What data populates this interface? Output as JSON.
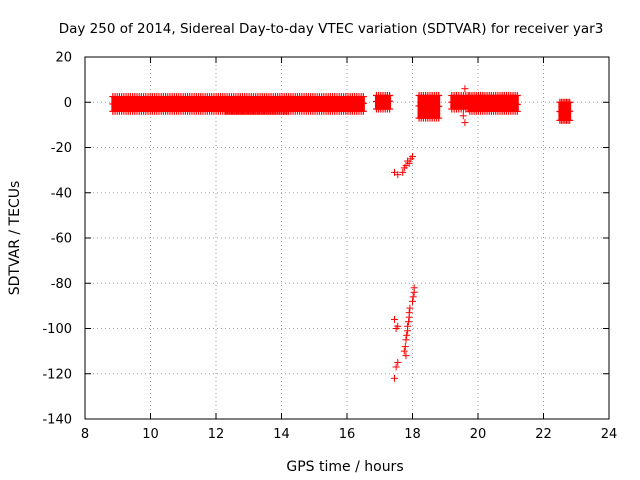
{
  "chart_data": {
    "type": "scatter",
    "title": "Day 250 of 2014, Sidereal Day-to-day VTEC variation (SDTVAR) for receiver yar3",
    "xlabel": "GPS time / hours",
    "ylabel": "SDTVAR / TECUs",
    "xlim": [
      8,
      24
    ],
    "ylim": [
      -140,
      20
    ],
    "xticks": [
      "8",
      "10",
      "12",
      "14",
      "16",
      "18",
      "20",
      "22",
      "24"
    ],
    "yticks": [
      "20",
      "0",
      "-20",
      "-40",
      "-60",
      "-80",
      "-100",
      "-120",
      "-140"
    ],
    "grid": true,
    "marker": "plus",
    "color": "#ff0000",
    "segments": [
      {
        "x_start": 8.85,
        "x_end": 16.5,
        "y_min": -4,
        "y_max": 2.5
      },
      {
        "x_start": 12.3,
        "x_end": 14.2,
        "y_min": -4,
        "y_max": 1
      },
      {
        "x_start": 16.9,
        "x_end": 17.3,
        "y_min": -3,
        "y_max": 3
      },
      {
        "x_start": 18.2,
        "x_end": 18.8,
        "y_min": -7,
        "y_max": 3
      },
      {
        "x_start": 19.2,
        "x_end": 19.7,
        "y_min": -3,
        "y_max": 3
      },
      {
        "x_start": 19.75,
        "x_end": 21.2,
        "y_min": -4,
        "y_max": 3
      },
      {
        "x_start": 22.5,
        "x_end": 22.8,
        "y_min": -8,
        "y_max": 0
      }
    ],
    "points": [
      {
        "x": 19.6,
        "y": 6
      },
      {
        "x": 19.55,
        "y": -6
      },
      {
        "x": 19.6,
        "y": -9
      },
      {
        "x": 17.45,
        "y": -31
      },
      {
        "x": 17.55,
        "y": -32
      },
      {
        "x": 17.7,
        "y": -31
      },
      {
        "x": 17.75,
        "y": -29
      },
      {
        "x": 17.8,
        "y": -28
      },
      {
        "x": 17.85,
        "y": -26
      },
      {
        "x": 17.9,
        "y": -27
      },
      {
        "x": 17.95,
        "y": -25
      },
      {
        "x": 18.0,
        "y": -24
      },
      {
        "x": 17.45,
        "y": -96
      },
      {
        "x": 17.55,
        "y": -99
      },
      {
        "x": 17.5,
        "y": -100
      },
      {
        "x": 17.55,
        "y": -115
      },
      {
        "x": 17.5,
        "y": -117
      },
      {
        "x": 17.45,
        "y": -122
      },
      {
        "x": 17.75,
        "y": -110
      },
      {
        "x": 17.78,
        "y": -108
      },
      {
        "x": 17.8,
        "y": -105
      },
      {
        "x": 17.82,
        "y": -103
      },
      {
        "x": 17.85,
        "y": -101
      },
      {
        "x": 17.85,
        "y": -99
      },
      {
        "x": 17.88,
        "y": -97
      },
      {
        "x": 17.9,
        "y": -95
      },
      {
        "x": 17.9,
        "y": -93
      },
      {
        "x": 17.92,
        "y": -91
      },
      {
        "x": 18.0,
        "y": -88
      },
      {
        "x": 18.02,
        "y": -86
      },
      {
        "x": 18.05,
        "y": -84
      },
      {
        "x": 18.05,
        "y": -82
      },
      {
        "x": 17.8,
        "y": -112
      }
    ]
  }
}
